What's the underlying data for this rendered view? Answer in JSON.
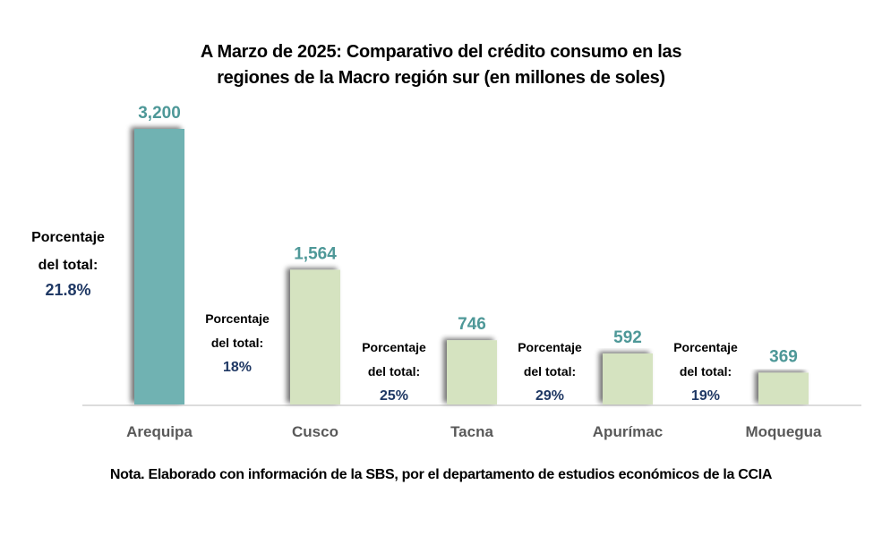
{
  "chart_data": {
    "type": "bar",
    "title_lines": [
      "A Marzo de 2025: Comparativo del crédito consumo en las",
      "regiones de la Macro región sur (en millones de soles)"
    ],
    "categories": [
      "Arequipa",
      "Cusco",
      "Tacna",
      "Apurímac",
      "Moquegua"
    ],
    "values": [
      3200,
      1564,
      746,
      592,
      369
    ],
    "value_labels": [
      "3,200",
      "1,564",
      "746",
      "592",
      "369"
    ],
    "annotation_label_lines": [
      "Porcentaje",
      "del total:"
    ],
    "percentages": [
      "21.8%",
      "18%",
      "25%",
      "29%",
      "19%"
    ],
    "bar_colors": [
      "#70b2b2",
      "#d5e3c0",
      "#d5e3c0",
      "#d5e3c0",
      "#d5e3c0"
    ],
    "value_label_color": "#4e9898",
    "percent_color": "#1f3864",
    "category_label_color": "#595959",
    "xlabel": "",
    "ylabel": "",
    "ylim": [
      0,
      3200
    ],
    "grid": false
  },
  "note": "Nota. Elaborado con información de la SBS, por el departamento de estudios económicos de la CCIA"
}
